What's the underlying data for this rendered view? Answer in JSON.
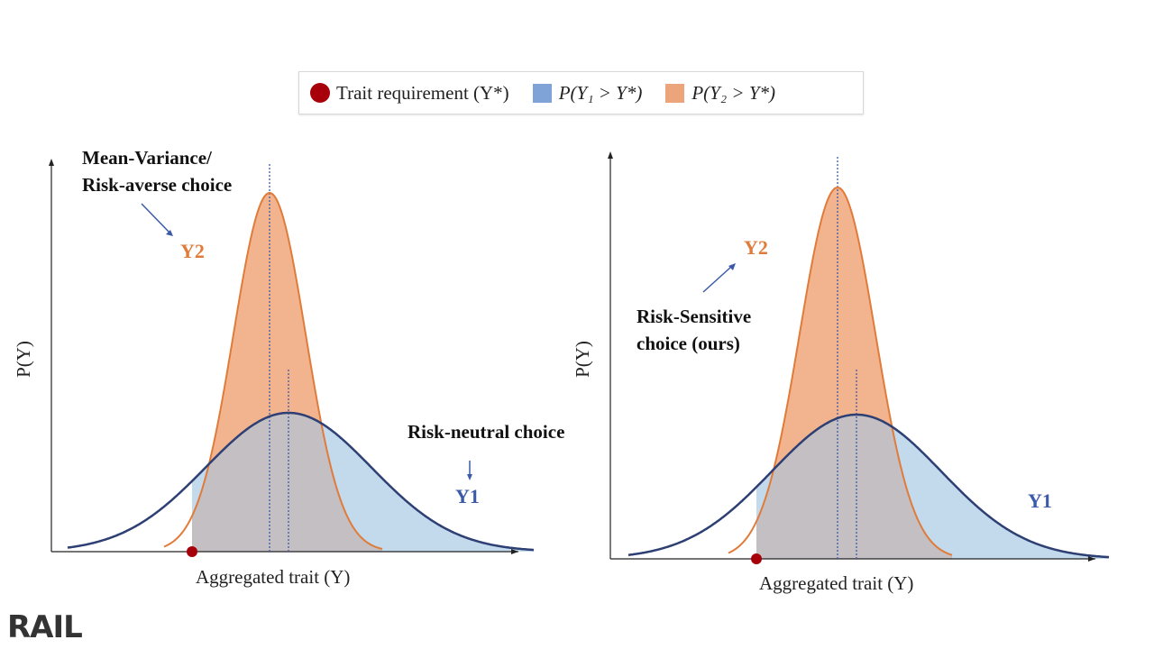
{
  "legend": {
    "trait_requirement": "Trait requirement (Y*)",
    "p_y1": "P(Y₁ > Y*)",
    "p_y2": "P(Y₂ > Y*)"
  },
  "colors": {
    "y1_line": "#2e3f73",
    "y2_line": "#e07b39",
    "y1_fill": "#c3d9ec",
    "y2_fill": "#f2b48f",
    "overlap_fill": "#c3bfc3",
    "requirement": "#a8000a",
    "legend_blue": "#7fa3d6",
    "legend_orange": "#eca57a"
  },
  "left_panel": {
    "y_axis_label": "P(Y)",
    "x_axis_label": "Aggregated trait (Y)",
    "annotation_risk_averse": [
      "Mean-Variance/",
      "Risk-averse choice"
    ],
    "annotation_risk_neutral": "Risk-neutral choice",
    "y1_label": "Y1",
    "y2_label": "Y2"
  },
  "right_panel": {
    "y_axis_label": "P(Y)",
    "x_axis_label": "Aggregated trait (Y)",
    "annotation_risk_sensitive": [
      "Risk-Sensitive",
      "choice (ours)"
    ],
    "y1_label": "Y1",
    "y2_label": "Y2"
  },
  "logo": "RAIL"
}
